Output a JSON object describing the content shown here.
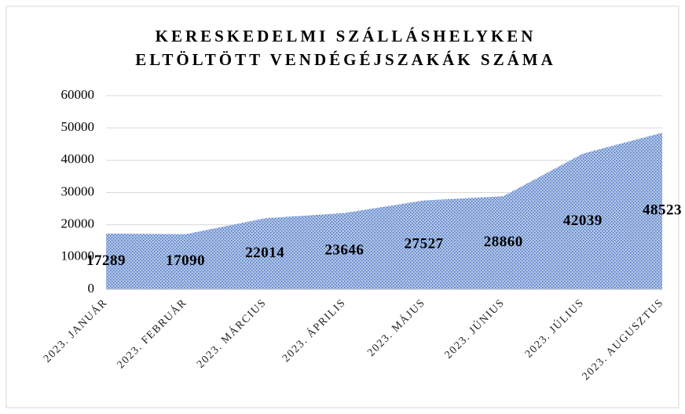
{
  "chart_data": {
    "type": "area",
    "title": [
      "KERESKEDELMI SZÁLLÁSHELYKEN",
      "ELTÖLTÖTT VENDÉGÉJSZAKÁK SZÁMA"
    ],
    "categories": [
      "2023. JANUÁR",
      "2023. FEBRUÁR",
      "2023. MÁRCIUS",
      "2023. ÁPRILIS",
      "2023. MÁJUS",
      "2023. JÚNIUS",
      "2023. JÚLIUS",
      "2023. AUGUSZTUS"
    ],
    "values": [
      17289,
      17090,
      22014,
      23646,
      27527,
      28860,
      42039,
      48523
    ],
    "color": "#4472c4",
    "ylim": [
      0,
      60000
    ],
    "yticks": [
      0,
      10000,
      20000,
      30000,
      40000,
      50000,
      60000
    ],
    "grid": true
  }
}
